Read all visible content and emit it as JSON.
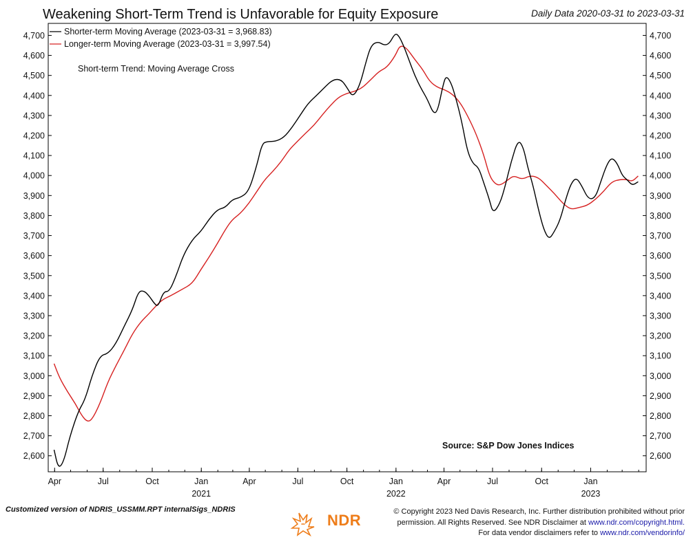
{
  "header": {
    "title": "Weakening Short-Term Trend is Unfavorable for Equity Exposure",
    "date_range": "Daily Data 2020-03-31 to 2023-03-31"
  },
  "chart_data": {
    "type": "line",
    "annotation": "Short-term Trend: Moving Average Cross",
    "source": "Source: S&P Dow Jones Indices",
    "ylim": [
      2520,
      4760
    ],
    "y_ticks": [
      "2,600",
      "2,700",
      "2,800",
      "2,900",
      "3,000",
      "3,100",
      "3,200",
      "3,300",
      "3,400",
      "3,500",
      "3,600",
      "3,700",
      "3,800",
      "3,900",
      "4,000",
      "4,100",
      "4,200",
      "4,300",
      "4,400",
      "4,500",
      "4,600",
      "4,700"
    ],
    "x_ticks": [
      {
        "label": "Apr",
        "date": "2020-04-01"
      },
      {
        "label": "Jul",
        "date": "2020-07-01"
      },
      {
        "label": "Oct",
        "date": "2020-10-01"
      },
      {
        "label": "Jan",
        "date": "2021-01-01"
      },
      {
        "label": "Apr",
        "date": "2021-04-01"
      },
      {
        "label": "Jul",
        "date": "2021-07-01"
      },
      {
        "label": "Oct",
        "date": "2021-10-01"
      },
      {
        "label": "Jan",
        "date": "2022-01-01"
      },
      {
        "label": "Apr",
        "date": "2022-04-01"
      },
      {
        "label": "Jul",
        "date": "2022-07-01"
      },
      {
        "label": "Oct",
        "date": "2022-10-01"
      },
      {
        "label": "Jan",
        "date": "2023-01-01"
      }
    ],
    "year_labels": [
      {
        "label": "2021",
        "date": "2021-01-01"
      },
      {
        "label": "2022",
        "date": "2022-01-01"
      },
      {
        "label": "2023",
        "date": "2023-01-01"
      }
    ],
    "x_range": [
      "2020-03-31",
      "2023-03-31"
    ],
    "grid": false,
    "legend_position": "top-left",
    "series": [
      {
        "name": "Shorter-term Moving Average (2023-03-31 = 3,968.83)",
        "color": "#000000",
        "points": [
          [
            "2020-03-31",
            2630
          ],
          [
            "2020-04-08",
            2535
          ],
          [
            "2020-04-18",
            2570
          ],
          [
            "2020-04-30",
            2700
          ],
          [
            "2020-05-15",
            2820
          ],
          [
            "2020-05-28",
            2880
          ],
          [
            "2020-06-10",
            3000
          ],
          [
            "2020-06-25",
            3100
          ],
          [
            "2020-07-10",
            3110
          ],
          [
            "2020-07-25",
            3160
          ],
          [
            "2020-08-10",
            3250
          ],
          [
            "2020-08-25",
            3330
          ],
          [
            "2020-09-05",
            3420
          ],
          [
            "2020-09-15",
            3425
          ],
          [
            "2020-09-25",
            3400
          ],
          [
            "2020-10-05",
            3360
          ],
          [
            "2020-10-12",
            3345
          ],
          [
            "2020-10-22",
            3420
          ],
          [
            "2020-11-02",
            3420
          ],
          [
            "2020-11-15",
            3500
          ],
          [
            "2020-11-28",
            3600
          ],
          [
            "2020-12-15",
            3680
          ],
          [
            "2020-12-31",
            3720
          ],
          [
            "2021-01-15",
            3780
          ],
          [
            "2021-01-31",
            3830
          ],
          [
            "2021-02-15",
            3840
          ],
          [
            "2021-02-28",
            3880
          ],
          [
            "2021-03-15",
            3890
          ],
          [
            "2021-03-31",
            3920
          ],
          [
            "2021-04-15",
            4050
          ],
          [
            "2021-04-25",
            4160
          ],
          [
            "2021-05-05",
            4170
          ],
          [
            "2021-05-20",
            4170
          ],
          [
            "2021-06-05",
            4190
          ],
          [
            "2021-06-20",
            4240
          ],
          [
            "2021-07-05",
            4300
          ],
          [
            "2021-07-20",
            4360
          ],
          [
            "2021-08-05",
            4400
          ],
          [
            "2021-08-20",
            4440
          ],
          [
            "2021-09-05",
            4480
          ],
          [
            "2021-09-20",
            4480
          ],
          [
            "2021-10-01",
            4440
          ],
          [
            "2021-10-12",
            4390
          ],
          [
            "2021-10-25",
            4450
          ],
          [
            "2021-11-05",
            4560
          ],
          [
            "2021-11-15",
            4650
          ],
          [
            "2021-11-28",
            4670
          ],
          [
            "2021-12-10",
            4650
          ],
          [
            "2021-12-20",
            4660
          ],
          [
            "2021-12-30",
            4710
          ],
          [
            "2022-01-06",
            4700
          ],
          [
            "2022-01-15",
            4650
          ],
          [
            "2022-01-25",
            4580
          ],
          [
            "2022-02-05",
            4500
          ],
          [
            "2022-02-18",
            4430
          ],
          [
            "2022-03-01",
            4380
          ],
          [
            "2022-03-12",
            4310
          ],
          [
            "2022-03-20",
            4320
          ],
          [
            "2022-03-30",
            4450
          ],
          [
            "2022-04-05",
            4500
          ],
          [
            "2022-04-15",
            4460
          ],
          [
            "2022-04-25",
            4370
          ],
          [
            "2022-05-05",
            4260
          ],
          [
            "2022-05-15",
            4120
          ],
          [
            "2022-05-25",
            4060
          ],
          [
            "2022-06-05",
            4040
          ],
          [
            "2022-06-15",
            3960
          ],
          [
            "2022-06-25",
            3880
          ],
          [
            "2022-07-02",
            3810
          ],
          [
            "2022-07-15",
            3860
          ],
          [
            "2022-07-25",
            3950
          ],
          [
            "2022-08-05",
            4070
          ],
          [
            "2022-08-18",
            4180
          ],
          [
            "2022-08-28",
            4140
          ],
          [
            "2022-09-05",
            4040
          ],
          [
            "2022-09-15",
            3950
          ],
          [
            "2022-09-25",
            3830
          ],
          [
            "2022-10-05",
            3730
          ],
          [
            "2022-10-15",
            3680
          ],
          [
            "2022-10-25",
            3720
          ],
          [
            "2022-11-05",
            3780
          ],
          [
            "2022-11-15",
            3880
          ],
          [
            "2022-11-25",
            3960
          ],
          [
            "2022-12-05",
            3990
          ],
          [
            "2022-12-15",
            3950
          ],
          [
            "2022-12-28",
            3880
          ],
          [
            "2023-01-10",
            3890
          ],
          [
            "2023-01-20",
            3970
          ],
          [
            "2023-02-01",
            4060
          ],
          [
            "2023-02-10",
            4090
          ],
          [
            "2023-02-20",
            4060
          ],
          [
            "2023-03-01",
            4000
          ],
          [
            "2023-03-10",
            3980
          ],
          [
            "2023-03-20",
            3950
          ],
          [
            "2023-03-31",
            3968.83
          ]
        ]
      },
      {
        "name": "Longer-term Moving Average (2023-03-31 = 3,997.54)",
        "color": "#d62020",
        "points": [
          [
            "2020-03-31",
            3060
          ],
          [
            "2020-04-10",
            2990
          ],
          [
            "2020-04-25",
            2920
          ],
          [
            "2020-05-10",
            2860
          ],
          [
            "2020-05-22",
            2800
          ],
          [
            "2020-06-01",
            2770
          ],
          [
            "2020-06-10",
            2780
          ],
          [
            "2020-06-25",
            2860
          ],
          [
            "2020-07-10",
            2970
          ],
          [
            "2020-07-25",
            3050
          ],
          [
            "2020-08-10",
            3130
          ],
          [
            "2020-08-25",
            3210
          ],
          [
            "2020-09-10",
            3270
          ],
          [
            "2020-09-25",
            3310
          ],
          [
            "2020-10-05",
            3340
          ],
          [
            "2020-10-20",
            3380
          ],
          [
            "2020-11-05",
            3400
          ],
          [
            "2020-11-25",
            3430
          ],
          [
            "2020-12-15",
            3460
          ],
          [
            "2020-12-31",
            3530
          ],
          [
            "2021-01-15",
            3590
          ],
          [
            "2021-01-31",
            3660
          ],
          [
            "2021-02-15",
            3730
          ],
          [
            "2021-02-28",
            3780
          ],
          [
            "2021-03-15",
            3810
          ],
          [
            "2021-03-31",
            3860
          ],
          [
            "2021-04-15",
            3920
          ],
          [
            "2021-04-30",
            3980
          ],
          [
            "2021-05-15",
            4020
          ],
          [
            "2021-05-31",
            4070
          ],
          [
            "2021-06-15",
            4130
          ],
          [
            "2021-06-30",
            4170
          ],
          [
            "2021-07-15",
            4210
          ],
          [
            "2021-07-31",
            4250
          ],
          [
            "2021-08-15",
            4300
          ],
          [
            "2021-08-31",
            4350
          ],
          [
            "2021-09-15",
            4390
          ],
          [
            "2021-09-30",
            4410
          ],
          [
            "2021-10-15",
            4420
          ],
          [
            "2021-10-31",
            4440
          ],
          [
            "2021-11-15",
            4480
          ],
          [
            "2021-11-30",
            4520
          ],
          [
            "2021-12-15",
            4540
          ],
          [
            "2021-12-31",
            4600
          ],
          [
            "2022-01-08",
            4650
          ],
          [
            "2022-01-20",
            4640
          ],
          [
            "2022-02-05",
            4580
          ],
          [
            "2022-02-20",
            4530
          ],
          [
            "2022-03-05",
            4470
          ],
          [
            "2022-03-20",
            4440
          ],
          [
            "2022-04-01",
            4430
          ],
          [
            "2022-04-15",
            4410
          ],
          [
            "2022-04-30",
            4370
          ],
          [
            "2022-05-15",
            4300
          ],
          [
            "2022-05-31",
            4210
          ],
          [
            "2022-06-15",
            4100
          ],
          [
            "2022-06-25",
            4000
          ],
          [
            "2022-07-05",
            3960
          ],
          [
            "2022-07-15",
            3950
          ],
          [
            "2022-07-31",
            3980
          ],
          [
            "2022-08-10",
            4000
          ],
          [
            "2022-08-25",
            3980
          ],
          [
            "2022-09-10",
            4000
          ],
          [
            "2022-09-25",
            3990
          ],
          [
            "2022-10-10",
            3950
          ],
          [
            "2022-10-25",
            3910
          ],
          [
            "2022-11-10",
            3860
          ],
          [
            "2022-11-25",
            3830
          ],
          [
            "2022-12-10",
            3840
          ],
          [
            "2022-12-25",
            3850
          ],
          [
            "2023-01-10",
            3880
          ],
          [
            "2023-01-25",
            3920
          ],
          [
            "2023-02-10",
            3970
          ],
          [
            "2023-02-25",
            3980
          ],
          [
            "2023-03-10",
            3980
          ],
          [
            "2023-03-20",
            3970
          ],
          [
            "2023-03-31",
            3997.54
          ]
        ]
      }
    ]
  },
  "footer": {
    "left_note": "Customized version of NDRIS_USSMM.RPT internalSigs_NDRIS",
    "copyright_line1": "© Copyright 2023 Ned Davis Research, Inc. Further distribution prohibited without prior",
    "copyright_line2_text": "permission. All Rights Reserved. See NDR Disclaimer at ",
    "copyright_line2_link": "www.ndr.com/copyright.html.",
    "copyright_line3_text": "For data vendor disclaimers refer to ",
    "copyright_line3_link": "www.ndr.com/vendorinfo/",
    "logo_text": "NDR",
    "logo_icon": "bull-bear-icon",
    "accent_color": "#ee7d1a"
  }
}
